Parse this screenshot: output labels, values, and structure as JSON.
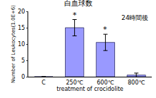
{
  "chart_data": {
    "type": "bar",
    "title": "白血球数",
    "categories": [
      "C",
      "250℃",
      "600℃",
      "800℃"
    ],
    "values": [
      0,
      15,
      10.5,
      0.5
    ],
    "errors": [
      0,
      2.5,
      2.5,
      0.6
    ],
    "color": "#9999ff",
    "x_label": "treatment of crocidolite",
    "y_label": "Number of Leukocytes(1.0E+6)",
    "ylim": [
      0,
      20
    ],
    "yticks": [
      0,
      5,
      10,
      15,
      20
    ],
    "grid": false,
    "annotations": [
      {
        "text": "24時間後"
      },
      {
        "text": "*",
        "category": "250℃"
      },
      {
        "text": "*",
        "category": "600℃"
      }
    ]
  }
}
